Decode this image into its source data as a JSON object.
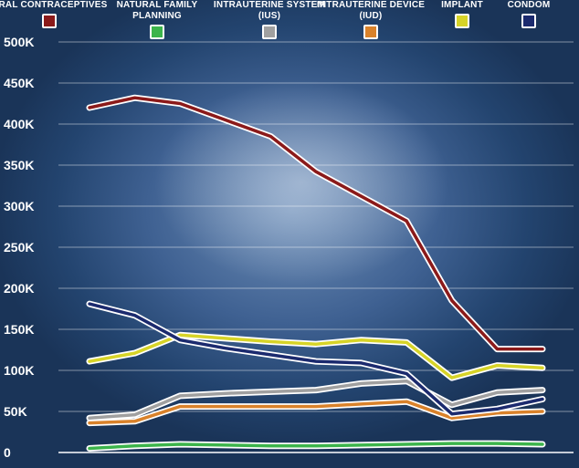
{
  "chart_data": {
    "type": "line",
    "title": "",
    "xlabel": "",
    "ylabel": "",
    "ylim": [
      0,
      500000
    ],
    "yticks": [
      {
        "value": 0,
        "label": "0"
      },
      {
        "value": 50000,
        "label": "50K"
      },
      {
        "value": 100000,
        "label": "100K"
      },
      {
        "value": 150000,
        "label": "150K"
      },
      {
        "value": 200000,
        "label": "200K"
      },
      {
        "value": 250000,
        "label": "250K"
      },
      {
        "value": 300000,
        "label": "300K"
      },
      {
        "value": 350000,
        "label": "350K"
      },
      {
        "value": 400000,
        "label": "400K"
      },
      {
        "value": 450000,
        "label": "450K"
      },
      {
        "value": 500000,
        "label": "500K"
      }
    ],
    "grid": true,
    "legend_position": "top",
    "x": [
      1,
      2,
      3,
      4,
      5,
      6,
      7,
      8,
      9,
      10,
      11
    ],
    "series": [
      {
        "name": "ORAL CONTRACEPTIVES",
        "color": "#8b1a1a",
        "values": [
          420000,
          432000,
          425000,
          405000,
          385000,
          342000,
          312000,
          282000,
          185000,
          126000,
          126000
        ]
      },
      {
        "name": "NATURAL FAMILY PLANNING",
        "color": "#3cb44b",
        "values": [
          5000,
          8000,
          10000,
          9000,
          8000,
          8000,
          9000,
          10000,
          11000,
          11000,
          10000
        ]
      },
      {
        "name": "INTRAUTERINE SYSTEM (IUS)",
        "color": "#a0a0a0",
        "values": [
          42000,
          46000,
          69000,
          72000,
          74000,
          76000,
          84000,
          87000,
          58000,
          73000,
          76000
        ]
      },
      {
        "name": "INTRAUTERINE DEVICE (IUD)",
        "color": "#d9822b",
        "values": [
          36000,
          38000,
          56000,
          56000,
          56000,
          56000,
          59000,
          62000,
          42000,
          48000,
          50000
        ]
      },
      {
        "name": "IMPLANT",
        "color": "#d7d428",
        "values": [
          111000,
          121000,
          143000,
          139000,
          135000,
          132000,
          137000,
          134000,
          91000,
          106000,
          103000
        ]
      },
      {
        "name": "CONDOM",
        "color": "#1b2a6e",
        "values": [
          181000,
          167000,
          137000,
          127000,
          119000,
          111000,
          109000,
          96000,
          47000,
          53000,
          65000
        ]
      }
    ]
  }
}
